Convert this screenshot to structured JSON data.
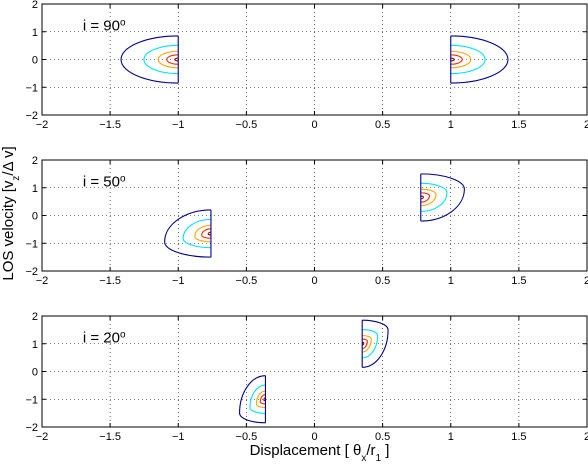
{
  "chart_data": {
    "type": "contour",
    "xlabel": {
      "main": "Displacement [ θ",
      "sub_x": "x",
      "slash": "/r",
      "sub_1": "1",
      "close": " ]"
    },
    "ylabel": {
      "main": "LOS velocity [v",
      "sub": "z",
      "rest": "/Δ v]"
    },
    "xlim": [
      -2,
      2
    ],
    "ylim": [
      -2,
      2
    ],
    "xticks": [
      -2,
      -1.5,
      -1,
      -0.5,
      0,
      0.5,
      1,
      1.5,
      2
    ],
    "xtick_labels": [
      "−2",
      "−1.5",
      "−1",
      "−0.5",
      "0",
      "0.5",
      "1",
      "1.5",
      "2"
    ],
    "yticks": [
      -2,
      -1,
      0,
      1,
      2
    ],
    "ytick_labels": [
      "−2",
      "−1",
      "0",
      "1",
      "2"
    ],
    "grid": true,
    "contour_colors": [
      "#00008b",
      "#00e5ee",
      "#ffa500",
      "#ff2a00",
      "#8b0000"
    ],
    "contour_levels": [
      1.0,
      0.6,
      0.35,
      0.2,
      0.06
    ],
    "panels": [
      {
        "label_text": "i = 90",
        "label_sup": "o",
        "angle_deg": 90,
        "shapes": [
          {
            "x_edge": -1.0,
            "y_center": 0.0,
            "y_half": 0.85,
            "x_tip": -1.42,
            "tip_y": 0.0
          },
          {
            "x_edge": 1.0,
            "y_center": 0.0,
            "y_half": 0.85,
            "x_tip": 1.42,
            "tip_y": 0.0
          }
        ]
      },
      {
        "label_text": "i = 50",
        "label_sup": "o",
        "angle_deg": 50,
        "shapes": [
          {
            "x_edge": -0.76,
            "y_center": -0.65,
            "y_half": 0.85,
            "x_tip": -1.1,
            "tip_y": -0.95
          },
          {
            "x_edge": 0.78,
            "y_center": 0.65,
            "y_half": 0.85,
            "x_tip": 1.1,
            "tip_y": 0.95
          }
        ]
      },
      {
        "label_text": "i = 20",
        "label_sup": "o",
        "angle_deg": 20,
        "shapes": [
          {
            "x_edge": -0.36,
            "y_center": -1.0,
            "y_half": 0.85,
            "x_tip": -0.55,
            "tip_y": -1.5
          },
          {
            "x_edge": 0.35,
            "y_center": 1.0,
            "y_half": 0.85,
            "x_tip": 0.54,
            "tip_y": 1.5
          }
        ]
      }
    ]
  }
}
